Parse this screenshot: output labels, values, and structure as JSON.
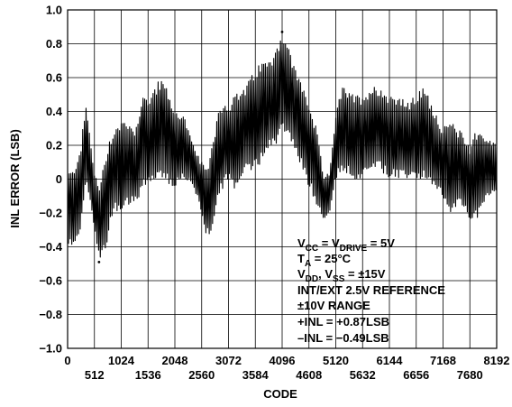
{
  "chart_data": {
    "type": "line",
    "title": "",
    "xlabel": "CODE",
    "ylabel": "INL ERROR (LSB)",
    "xlim": [
      0,
      8192
    ],
    "ylim": [
      -1.0,
      1.0
    ],
    "grid": true,
    "x_ticks_top_row": [
      "0",
      "1024",
      "2048",
      "3072",
      "4096",
      "5120",
      "6144",
      "7168",
      "8192"
    ],
    "x_ticks_bottom_row": [
      "512",
      "1536",
      "2560",
      "3584",
      "4608",
      "5632",
      "6656",
      "7680"
    ],
    "y_ticks": [
      "1.0",
      "0.8",
      "0.6",
      "0.4",
      "0.2",
      "0",
      "−0.2",
      "−0.4",
      "−0.6",
      "−0.8",
      "−1.0"
    ],
    "y_tick_values": [
      1.0,
      0.8,
      0.6,
      0.4,
      0.2,
      0,
      -0.2,
      -0.4,
      -0.6,
      -0.8,
      -1.0
    ],
    "series": [
      {
        "color": "#000000",
        "envelope": {
          "x": [
            0,
            100,
            250,
            350,
            512,
            600,
            700,
            800,
            900,
            1024,
            1150,
            1300,
            1450,
            1536,
            1650,
            1800,
            1950,
            2048,
            2200,
            2400,
            2560,
            2650,
            2750,
            2900,
            3072,
            3200,
            3400,
            3584,
            3700,
            3850,
            4000,
            4096,
            4200,
            4350,
            4500,
            4608,
            4750,
            4900,
            5000,
            5120,
            5250,
            5450,
            5632,
            5800,
            5950,
            6144,
            6300,
            6500,
            6656,
            6800,
            6950,
            7168,
            7300,
            7450,
            7600,
            7680,
            7800,
            8000,
            8192
          ],
          "upper": [
            0.05,
            0.05,
            0.2,
            0.45,
            0.05,
            -0.05,
            0.1,
            0.25,
            0.3,
            0.35,
            0.35,
            0.3,
            0.55,
            0.45,
            0.55,
            0.6,
            0.5,
            0.4,
            0.4,
            0.2,
            0.1,
            0.05,
            0.2,
            0.45,
            0.45,
            0.5,
            0.55,
            0.65,
            0.7,
            0.7,
            0.8,
            0.87,
            0.8,
            0.65,
            0.55,
            0.45,
            0.3,
            0.0,
            0.05,
            0.4,
            0.55,
            0.5,
            0.5,
            0.55,
            0.55,
            0.5,
            0.5,
            0.45,
            0.5,
            0.55,
            0.45,
            0.3,
            0.35,
            0.3,
            0.25,
            0.2,
            0.3,
            0.25,
            0.2
          ],
          "lower": [
            -0.4,
            -0.4,
            -0.3,
            0.0,
            -0.3,
            -0.49,
            -0.45,
            -0.3,
            -0.2,
            -0.2,
            -0.15,
            -0.15,
            -0.05,
            -0.05,
            0.0,
            0.0,
            -0.05,
            -0.05,
            0.0,
            -0.05,
            -0.2,
            -0.35,
            -0.3,
            -0.1,
            0.0,
            -0.1,
            0.05,
            0.05,
            0.1,
            0.2,
            0.2,
            0.3,
            0.25,
            0.15,
            0.05,
            -0.05,
            -0.15,
            -0.25,
            -0.2,
            0.0,
            0.05,
            0.0,
            0.0,
            0.05,
            0.05,
            0.0,
            0.0,
            0.0,
            0.0,
            0.0,
            -0.05,
            -0.1,
            -0.2,
            -0.15,
            -0.2,
            -0.25,
            -0.25,
            -0.1,
            -0.1
          ]
        }
      }
    ],
    "max_point": {
      "x": 4096,
      "y": 0.87
    },
    "min_point": {
      "x": 600,
      "y": -0.49
    },
    "annotation": {
      "line1": {
        "p1": "V",
        "s1": "CC",
        "p2": " = V",
        "s2": "DRIVE",
        "p3": " = 5V"
      },
      "line2": {
        "p1": "T",
        "s1": "A",
        "p2": " = 25°C"
      },
      "line3": {
        "p1": "V",
        "s1": "DD",
        "p2": ", V",
        "s2": "SS",
        "p3": " = ±15V"
      },
      "line4": "INT/EXT 2.5V REFERENCE",
      "line5": "±10V RANGE",
      "line6": "+INL = +0.87LSB",
      "line7": "–INL = −0.49LSB"
    }
  }
}
